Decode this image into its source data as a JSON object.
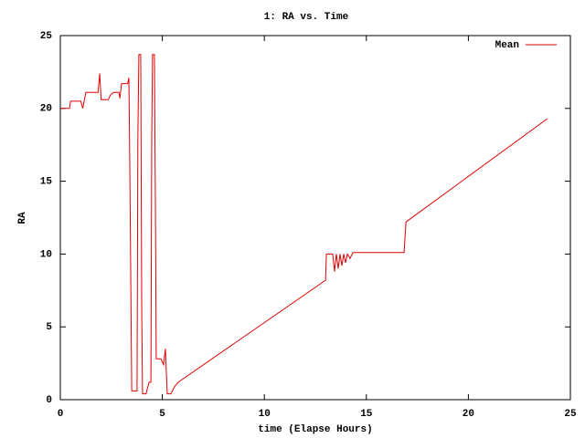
{
  "chart_data": {
    "type": "line",
    "title": "1: RA vs. Time",
    "xlabel": "time (Elapse Hours)",
    "ylabel": "RA",
    "x": [
      0,
      0.45,
      0.5,
      1.0,
      1.1,
      1.25,
      1.85,
      1.93,
      2.0,
      2.35,
      2.45,
      2.6,
      2.87,
      2.92,
      3.0,
      3.3,
      3.36,
      3.4,
      3.5,
      3.76,
      3.8,
      3.85,
      3.94,
      3.99,
      4.03,
      4.2,
      4.35,
      4.44,
      4.48,
      4.52,
      4.61,
      4.66,
      4.7,
      4.93,
      5.06,
      5.15,
      5.24,
      5.42,
      5.6,
      5.78,
      13.0,
      13.04,
      13.35,
      13.44,
      13.53,
      13.62,
      13.71,
      13.8,
      13.89,
      13.98,
      14.07,
      14.2,
      14.34,
      16.85,
      16.94,
      23.88
    ],
    "series": [
      {
        "name": "Mean",
        "color": "#e00000",
        "values": [
          20,
          20,
          20.5,
          20.5,
          20,
          21.1,
          21.1,
          22.4,
          20.6,
          20.6,
          20.9,
          21.1,
          21.1,
          20.7,
          21.7,
          21.7,
          22.1,
          16.8,
          0.6,
          0.6,
          17.9,
          23.7,
          23.7,
          6,
          0.4,
          0.4,
          1.2,
          1.2,
          18,
          23.7,
          23.7,
          13.5,
          2.8,
          2.8,
          2.4,
          3.5,
          0.4,
          0.4,
          0.9,
          1.2,
          8.2,
          10,
          10,
          8.8,
          10,
          9.0,
          10,
          9.2,
          10,
          9.4,
          10,
          9.7,
          10.1,
          10.1,
          12.2,
          19.3
        ]
      }
    ],
    "xlim": [
      0,
      25
    ],
    "ylim": [
      0,
      25
    ],
    "xticks": [
      0,
      5,
      10,
      15,
      20,
      25
    ],
    "yticks": [
      0,
      5,
      10,
      15,
      20,
      25
    ],
    "legend": "top-right"
  }
}
